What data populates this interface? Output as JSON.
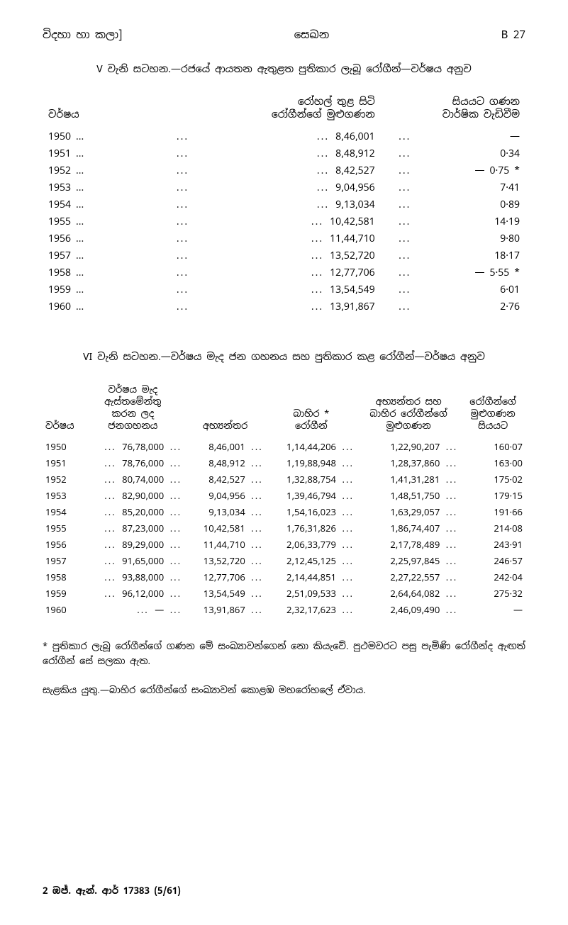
{
  "header": {
    "left": "විදහා හා කලා]",
    "center": "සෙඛන",
    "right": "B 27"
  },
  "table5": {
    "title": "V වැනි සටහන.—රජයේ ආයතන ඇතුළත පුතිකාර ලැබූ රෝගීන්—වර්ෂය අනුව",
    "col_year_label": "වර්ෂය",
    "col_val1_label_line1": "රෝහල් තුළ සිටි",
    "col_val1_label_line2": "රෝගීන්ගේ මුළුගණන",
    "col_val2_label_line1": "සියයට ගණන",
    "col_val2_label_line2": "වාර්ෂික වැඩිවීම",
    "rows": [
      {
        "year": "1950 ...",
        "val1": "8,46,001",
        "val2": "—"
      },
      {
        "year": "1951 ...",
        "val1": "8,48,912",
        "val2": "0·34"
      },
      {
        "year": "1952 ...",
        "val1": "8,42,527",
        "val2": "— 0·75 *"
      },
      {
        "year": "1953 ...",
        "val1": "9,04,956",
        "val2": "7·41"
      },
      {
        "year": "1954 ...",
        "val1": "9,13,034",
        "val2": "0·89"
      },
      {
        "year": "1955 ...",
        "val1": "10,42,581",
        "val2": "14·19"
      },
      {
        "year": "1956 ...",
        "val1": "11,44,710",
        "val2": "9·80"
      },
      {
        "year": "1957 ...",
        "val1": "13,52,720",
        "val2": "18·17"
      },
      {
        "year": "1958 ...",
        "val1": "12,77,706",
        "val2": "— 5·55 *"
      },
      {
        "year": "1959 ...",
        "val1": "13,54,549",
        "val2": "6·01"
      },
      {
        "year": "1960 ...",
        "val1": "13,91,867",
        "val2": "2·76"
      }
    ]
  },
  "table6": {
    "title": "VI වැනි සටහන.—වර්ෂය මැද ජන ගහනය සහ පුතිකාර කළ රෝගීන්—වර්ෂය අනුව",
    "headers": {
      "col1": "වර්ෂය",
      "col2_line1": "වර්ෂය මැද",
      "col2_line2": "ඇස්තමේන්තු",
      "col2_line3": "කරන ලද",
      "col2_line4": "ජනගහනය",
      "col3": "අභ්‍යන්තර",
      "col4_line1": "බාහිර *",
      "col4_line2": "රෝගීන්",
      "col5_line1": "අභ්‍යන්තර සහ",
      "col5_line2": "බාහිර රෝගීන්ගේ",
      "col5_line3": "මුළුගණන",
      "col6_line1": "රෝගීන්ගේ",
      "col6_line2": "මුළුගණන",
      "col6_line3": "සියයට"
    },
    "rows": [
      {
        "year": "1950",
        "pop": "76,78,000",
        "in": "8,46,001",
        "out": "1,14,44,206",
        "tot": "1,22,90,207",
        "pct": "160·07"
      },
      {
        "year": "1951",
        "pop": "78,76,000",
        "in": "8,48,912",
        "out": "1,19,88,948",
        "tot": "1,28,37,860",
        "pct": "163·00"
      },
      {
        "year": "1952",
        "pop": "80,74,000",
        "in": "8,42,527",
        "out": "1,32,88,754",
        "tot": "1,41,31,281",
        "pct": "175·02"
      },
      {
        "year": "1953",
        "pop": "82,90,000",
        "in": "9,04,956",
        "out": "1,39,46,794",
        "tot": "1,48,51,750",
        "pct": "179·15"
      },
      {
        "year": "1954",
        "pop": "85,20,000",
        "in": "9,13,034",
        "out": "1,54,16,023",
        "tot": "1,63,29,057",
        "pct": "191·66"
      },
      {
        "year": "1955",
        "pop": "87,23,000",
        "in": "10,42,581",
        "out": "1,76,31,826",
        "tot": "1,86,74,407",
        "pct": "214·08"
      },
      {
        "year": "1956",
        "pop": "89,29,000",
        "in": "11,44,710",
        "out": "2,06,33,779",
        "tot": "2,17,78,489",
        "pct": "243·91"
      },
      {
        "year": "1957",
        "pop": "91,65,000",
        "in": "13,52,720",
        "out": "2,12,45,125",
        "tot": "2,25,97,845",
        "pct": "246·57"
      },
      {
        "year": "1958",
        "pop": "93,88,000",
        "in": "12,77,706",
        "out": "2,14,44,851",
        "tot": "2,27,22,557",
        "pct": "242·04"
      },
      {
        "year": "1959",
        "pop": "96,12,000",
        "in": "13,54,549",
        "out": "2,51,09,533",
        "tot": "2,64,64,082",
        "pct": "275·32"
      },
      {
        "year": "1960",
        "pop": "—",
        "in": "13,91,867",
        "out": "2,32,17,623",
        "tot": "2,46,09,490",
        "pct": "—"
      }
    ]
  },
  "footnote1": "* පුතිකාර ලැබූ රෝගීන්ගේ ගණන මේ සංඛ්‍යාවන්ගෙන් නො කියැවේ. පුථමවරට පසු පැමිණි රෝගීන්ද ඇඟත් රෝගීන් සේ සලකා ඇත.",
  "footnote2": "සැළකිය යුතු.—බාහිර රෝගීන්ගේ සංඛ්‍යාවන් කොළඹ මහරෝහලේ ඒවාය.",
  "bottom": "2 ඔජ්. ඇන්. ආර් 17383 (5/61)"
}
